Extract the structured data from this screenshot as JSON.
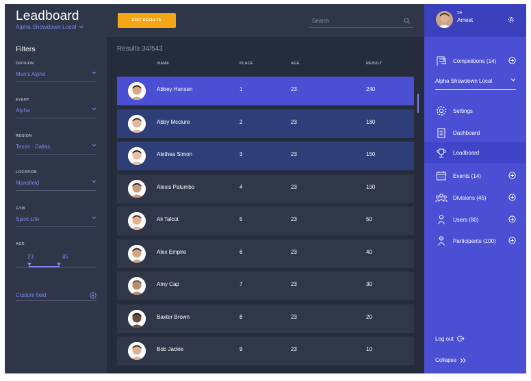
{
  "header": {
    "title": "Leadboard",
    "competition": "Alpha Showdown Local",
    "edit_button": "EDIT RESULTS",
    "search_placeholder": "Search"
  },
  "filters": {
    "title": "Filters",
    "division": {
      "label": "DIVISION",
      "value": "Man's Alpha"
    },
    "event": {
      "label": "EVENT",
      "value": "Alpha"
    },
    "region": {
      "label": "REGION",
      "value": "Texas - Dallas"
    },
    "location": {
      "label": "LOCATION",
      "value": "Mansfield"
    },
    "gym": {
      "label": "GYM",
      "value": "Sport Life"
    },
    "age": {
      "label": "AGE",
      "min": "23",
      "max": "45"
    },
    "custom_field": "Custom field"
  },
  "results": {
    "count": "Results 34/543",
    "columns": {
      "name": "NAME",
      "place": "PLACE",
      "age": "AGE",
      "result": "RESULT"
    },
    "rows": [
      {
        "name": "Abbey Hansen",
        "place": "1",
        "age": "23",
        "result": "240"
      },
      {
        "name": "Abby Mcclure",
        "place": "2",
        "age": "23",
        "result": "180"
      },
      {
        "name": "Alethea Simon",
        "place": "3",
        "age": "23",
        "result": "150"
      },
      {
        "name": "Alexis Palumbo",
        "place": "4",
        "age": "23",
        "result": "100"
      },
      {
        "name": "Ali Talcot",
        "place": "5",
        "age": "23",
        "result": "50"
      },
      {
        "name": "Alex Empire",
        "place": "6",
        "age": "23",
        "result": "40"
      },
      {
        "name": "Amy Cap",
        "place": "7",
        "age": "23",
        "result": "30"
      },
      {
        "name": "Baxter Brown",
        "place": "8",
        "age": "23",
        "result": "20"
      },
      {
        "name": "Bob Jackie",
        "place": "9",
        "age": "23",
        "result": "10"
      }
    ]
  },
  "sidebar": {
    "initials": "SA",
    "user": "Ameet",
    "competitions": "Competitions (14)",
    "competition_select": "Alpha Showdown Local",
    "items": {
      "settings": "Settings",
      "dashboard": "Dashboard",
      "leadboard": "Leadboard",
      "events": "Events (14)",
      "divisions": "Divisions (45)",
      "users": "Users (80)",
      "participants": "Participants (100)"
    },
    "logout": "Log out",
    "collapse": "Collapse"
  },
  "colors": {
    "accent": "#4a4fd4",
    "button": "#f5a614",
    "background": "#252c3b",
    "panel": "#2e3648",
    "link": "#7d86f0"
  }
}
